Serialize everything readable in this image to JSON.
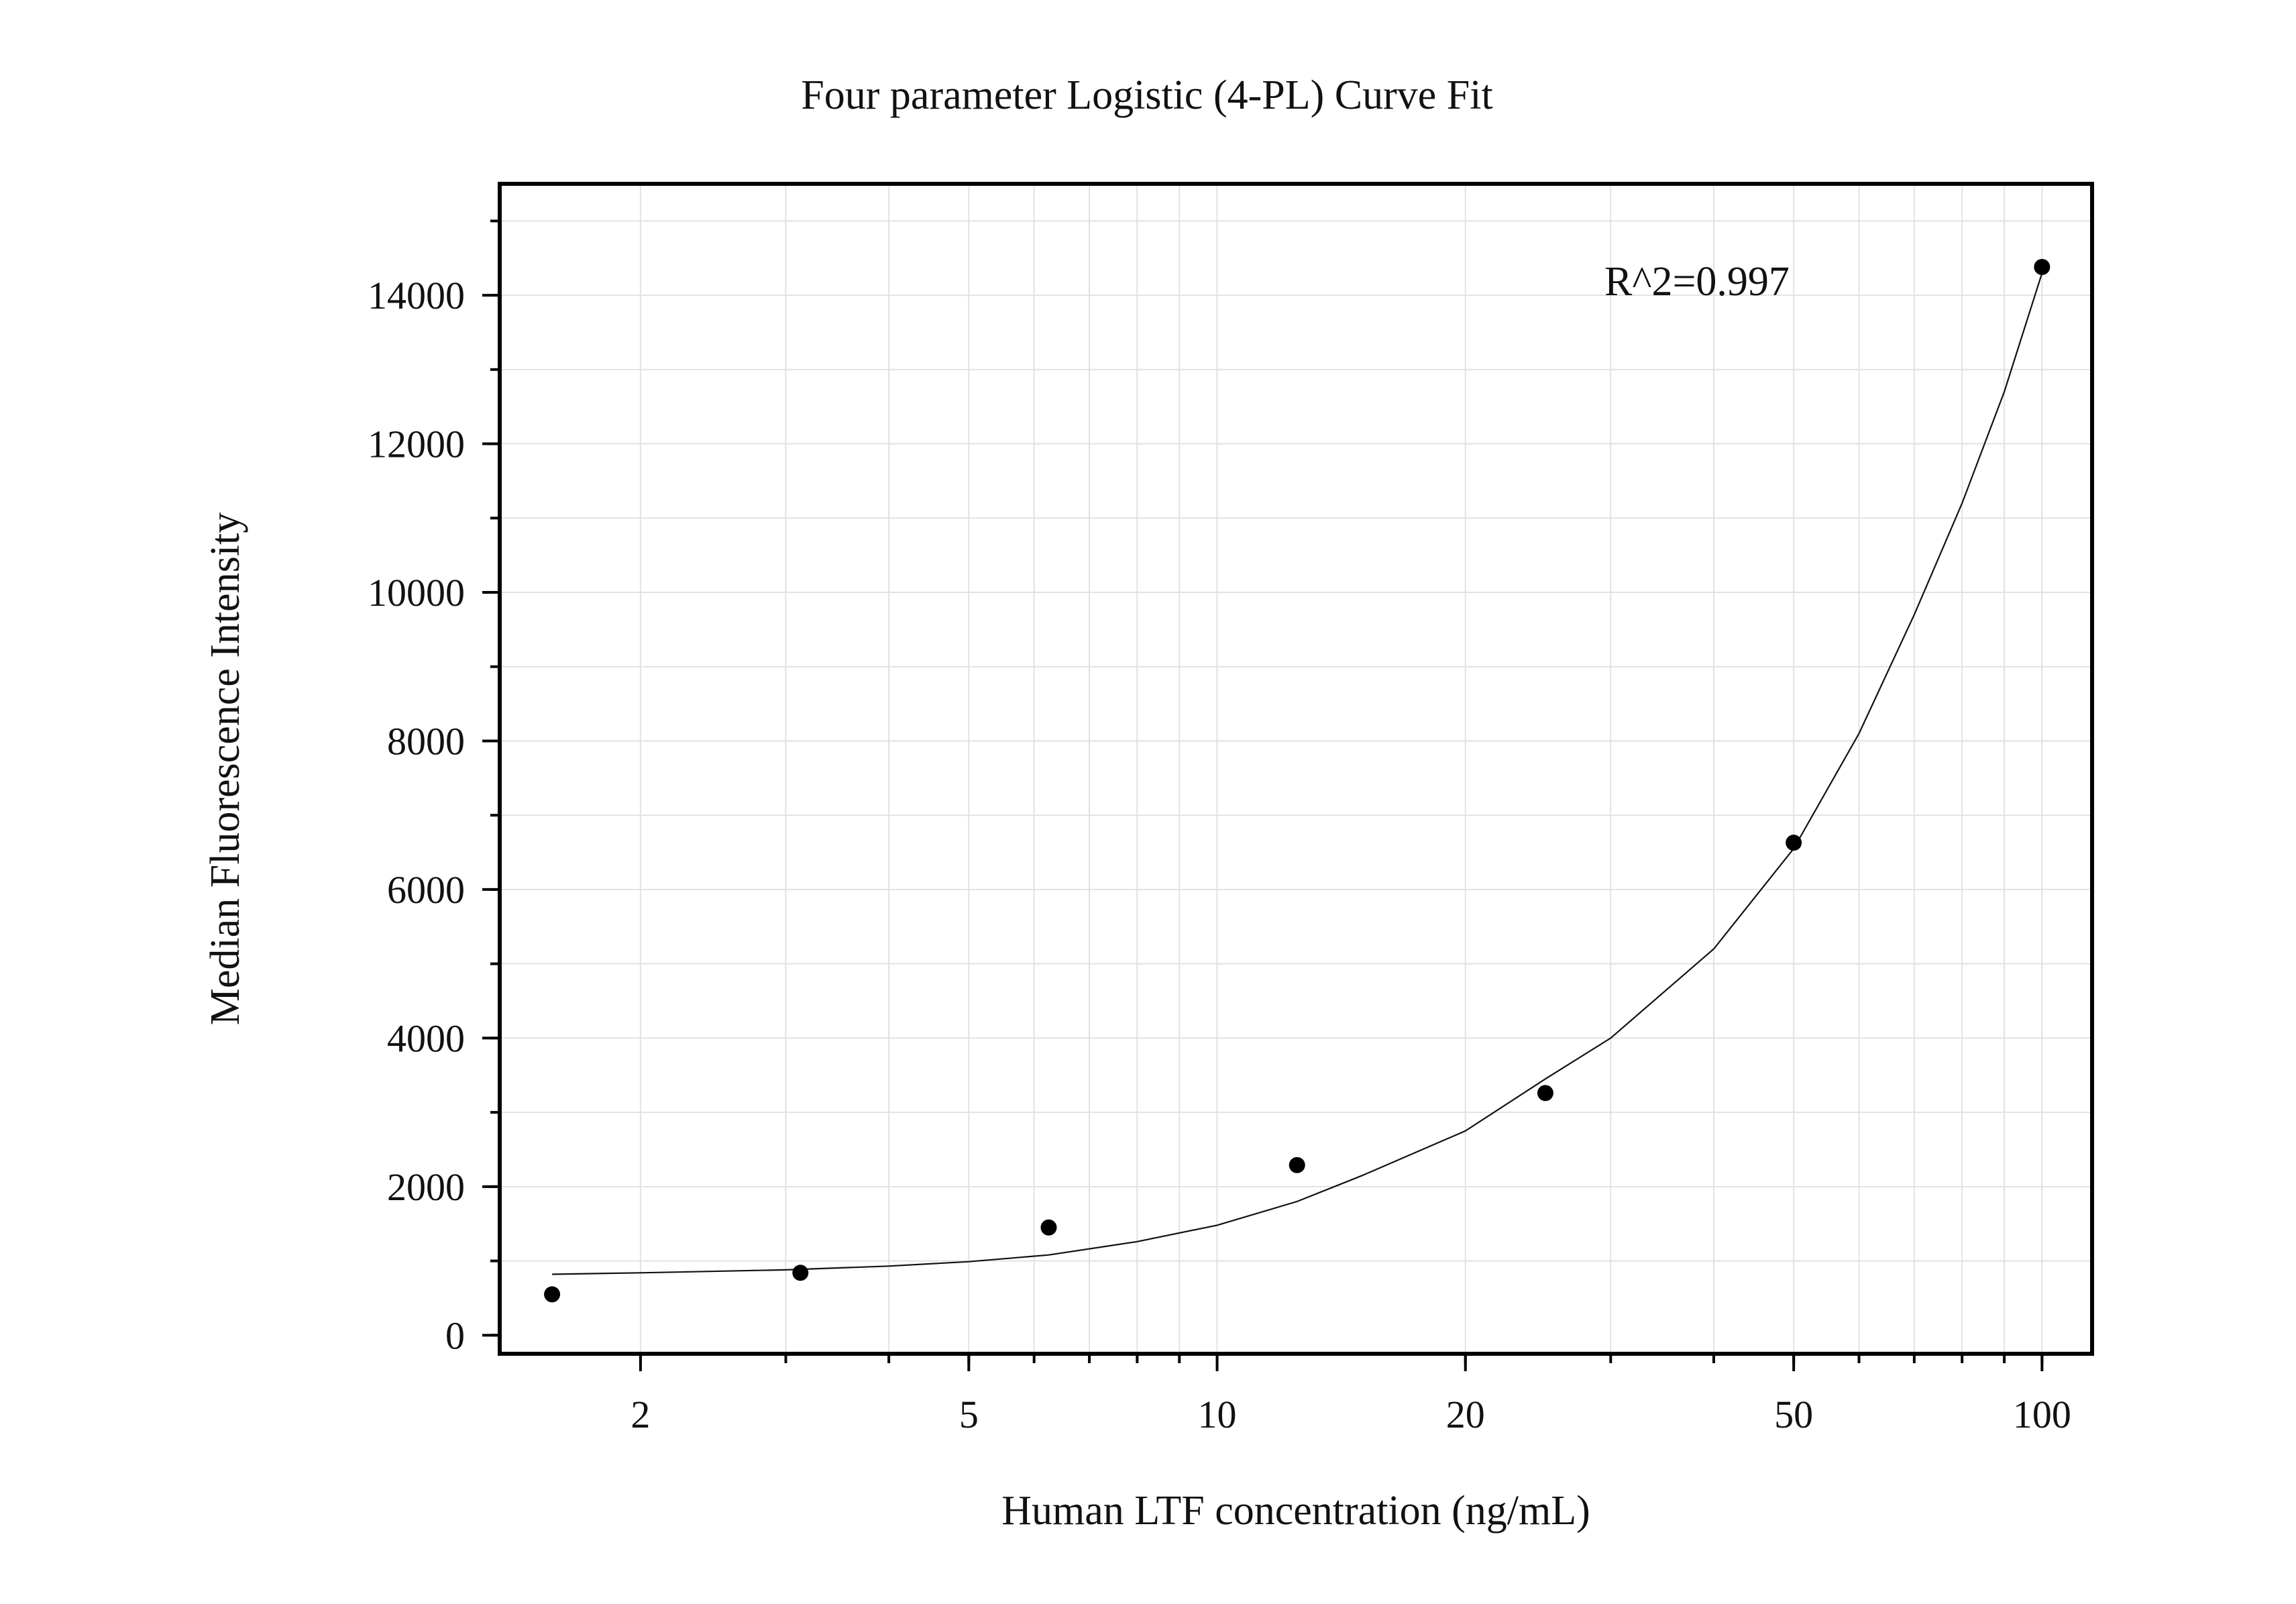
{
  "chart_data": {
    "type": "scatter",
    "title": "Four parameter Logistic (4-PL) Curve Fit",
    "xlabel": "Human LTF concentration (ng/mL)",
    "ylabel": "Median Fluorescence Intensity",
    "annotation": "R^2=0.997",
    "x_scale": "log",
    "xlim": [
      1.35,
      115
    ],
    "ylim": [
      -250,
      15500
    ],
    "x_ticks": [
      2,
      5,
      10,
      20,
      50,
      100
    ],
    "x_tick_labels": [
      "2",
      "5",
      "10",
      "20",
      "50",
      "100"
    ],
    "y_ticks": [
      0,
      2000,
      4000,
      6000,
      8000,
      10000,
      12000,
      14000
    ],
    "y_tick_labels": [
      "0",
      "2000",
      "4000",
      "6000",
      "8000",
      "10000",
      "12000",
      "14000"
    ],
    "grid": true,
    "series": [
      {
        "x": [
          1.5625,
          3.125,
          6.25,
          12.5,
          25,
          50,
          100
        ],
        "y": [
          550,
          840,
          1450,
          2290,
          3260,
          6630,
          14380
        ],
        "marker": "filled-circle",
        "color": "#000000"
      }
    ],
    "fit_curve": {
      "x": [
        1.5625,
        2,
        3,
        4,
        5,
        6.25,
        8,
        10,
        12.5,
        15,
        20,
        25,
        30,
        40,
        50,
        60,
        70,
        80,
        90,
        100
      ],
      "y": [
        820,
        840,
        880,
        930,
        990,
        1080,
        1260,
        1480,
        1800,
        2150,
        2750,
        3450,
        4000,
        5200,
        6550,
        8100,
        9700,
        11200,
        12700,
        14300
      ],
      "color": "#111111"
    }
  }
}
